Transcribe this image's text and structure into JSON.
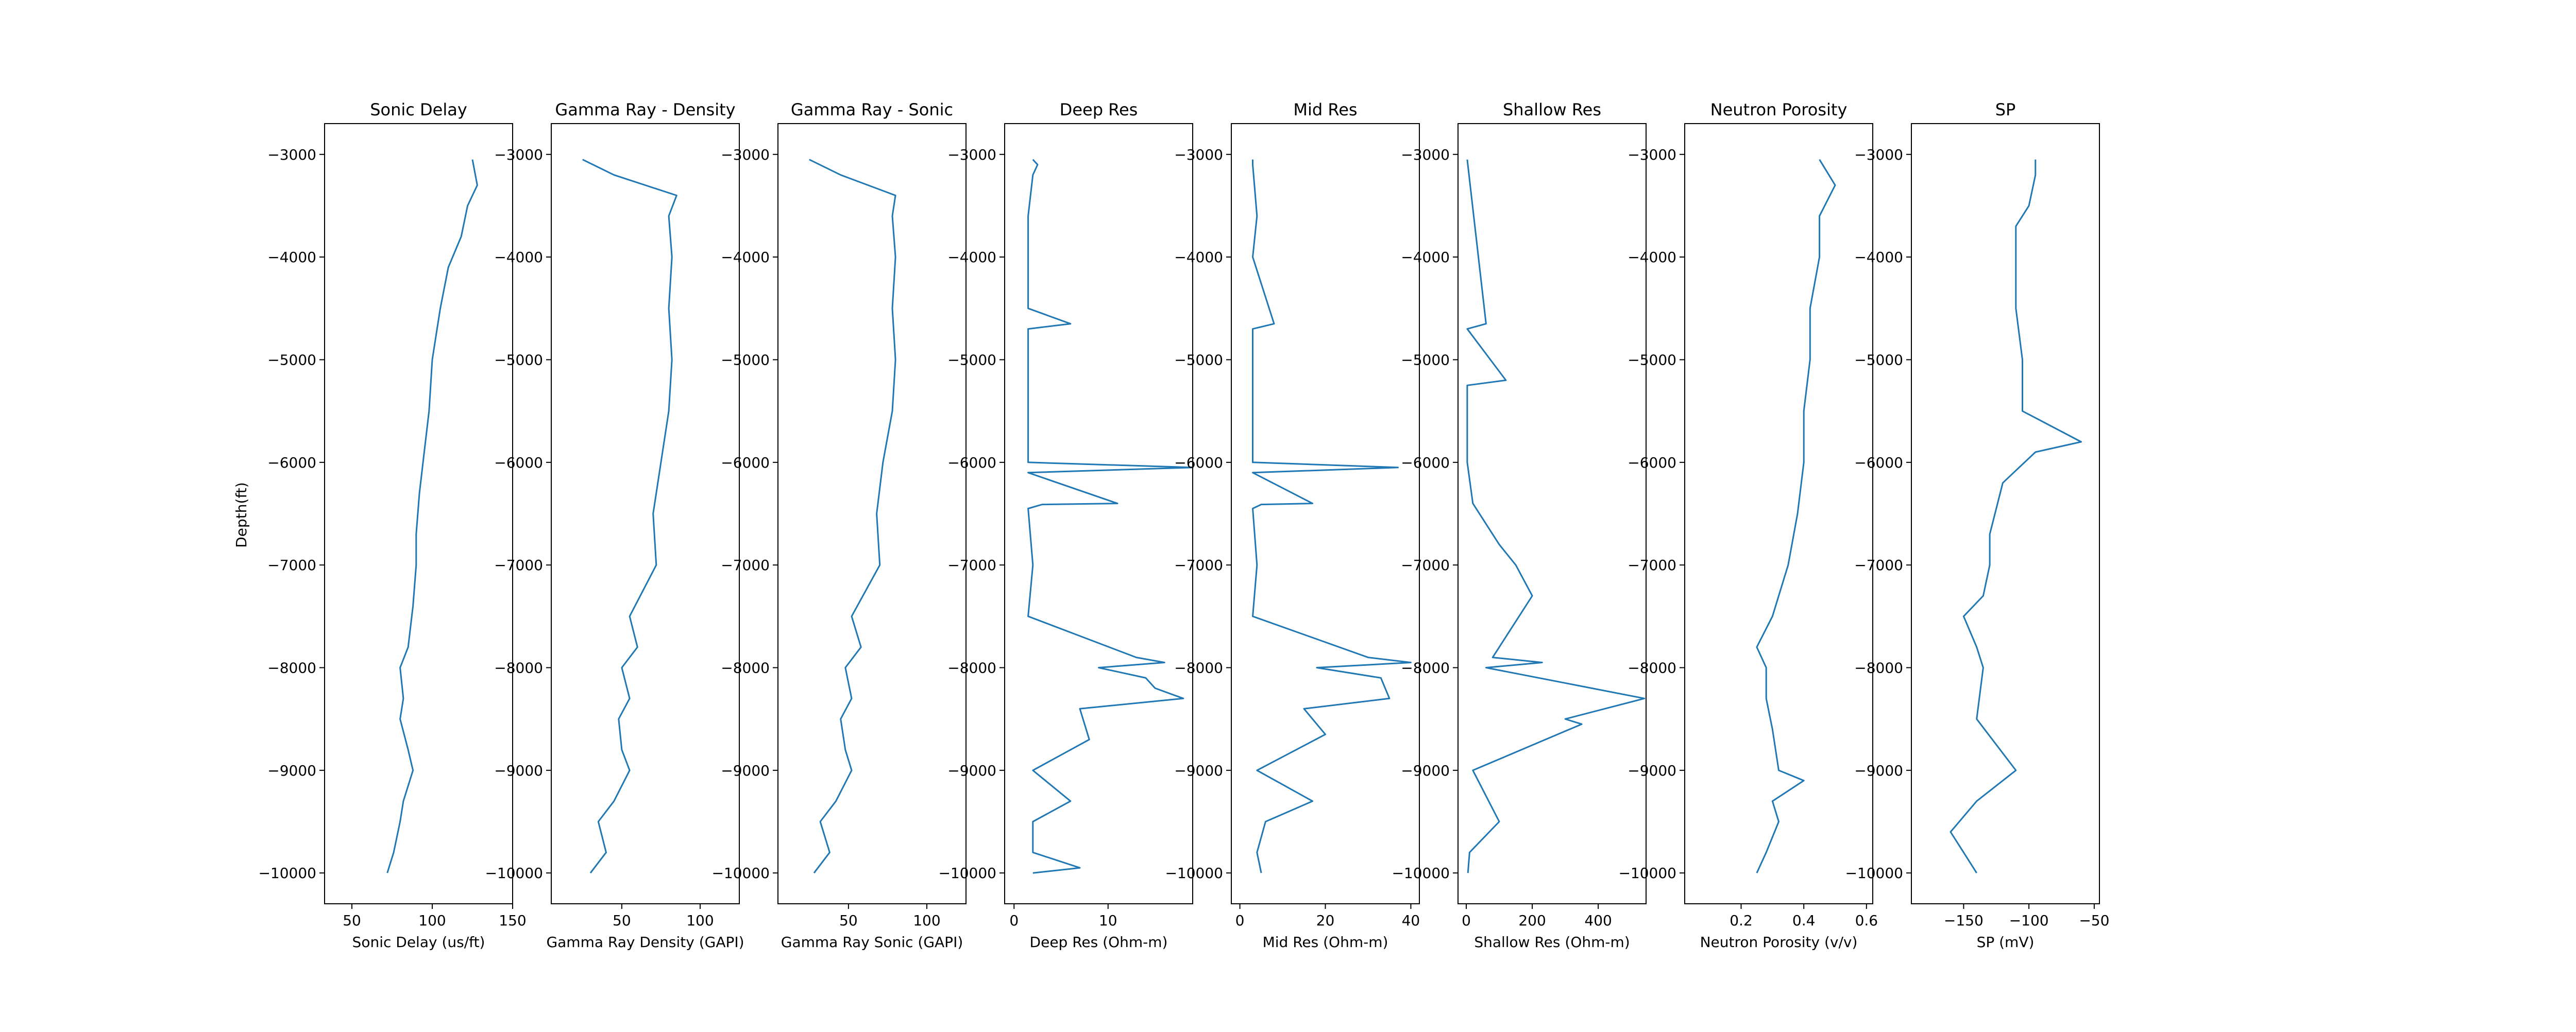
{
  "figure": {
    "ylabel": "Depth(ft)"
  },
  "chart_data": [
    {
      "type": "line",
      "title": "Sonic Delay",
      "xlabel": "Sonic Delay (us/ft)",
      "xlim": [
        33,
        150
      ],
      "xticks": [
        50,
        100,
        150
      ],
      "ylim": [
        -10300,
        -2700
      ],
      "yticks": [
        -3000,
        -4000,
        -5000,
        -6000,
        -7000,
        -8000,
        -9000,
        -10000
      ],
      "color": "#1f77b4",
      "series": [
        {
          "y": [
            -3050,
            -3300,
            -3500,
            -3800,
            -4100,
            -4500,
            -5000,
            -5500,
            -5900,
            -6300,
            -6700,
            -7000,
            -7400,
            -7800,
            -8000,
            -8300,
            -8500,
            -8800,
            -9000,
            -9300,
            -9500,
            -9800,
            -10000
          ],
          "x": [
            125,
            128,
            122,
            118,
            110,
            105,
            100,
            98,
            95,
            92,
            90,
            90,
            88,
            85,
            80,
            82,
            80,
            85,
            88,
            82,
            80,
            76,
            72
          ]
        }
      ]
    },
    {
      "type": "line",
      "title": "Gamma Ray - Density",
      "xlabel": "Gamma Ray Density (GAPI)",
      "xlim": [
        5,
        125
      ],
      "xticks": [
        50,
        100
      ],
      "ylim": [
        -10300,
        -2700
      ],
      "yticks": [
        -3000,
        -4000,
        -5000,
        -6000,
        -7000,
        -8000,
        -9000,
        -10000
      ],
      "color": "#1f77b4",
      "series": [
        {
          "y": [
            -3050,
            -3200,
            -3400,
            -3600,
            -4000,
            -4500,
            -5000,
            -5500,
            -6000,
            -6500,
            -7000,
            -7500,
            -7800,
            -8000,
            -8300,
            -8500,
            -8800,
            -9000,
            -9300,
            -9500,
            -9800,
            -10000
          ],
          "x": [
            25,
            45,
            85,
            80,
            82,
            80,
            82,
            80,
            75,
            70,
            72,
            55,
            60,
            50,
            55,
            48,
            50,
            55,
            45,
            35,
            40,
            30
          ]
        }
      ]
    },
    {
      "type": "line",
      "title": "Gamma Ray - Sonic",
      "xlabel": "Gamma Ray Sonic (GAPI)",
      "xlim": [
        5,
        125
      ],
      "xticks": [
        50,
        100
      ],
      "ylim": [
        -10300,
        -2700
      ],
      "yticks": [
        -3000,
        -4000,
        -5000,
        -6000,
        -7000,
        -8000,
        -9000,
        -10000
      ],
      "color": "#1f77b4",
      "series": [
        {
          "y": [
            -3050,
            -3200,
            -3400,
            -3600,
            -4000,
            -4500,
            -5000,
            -5500,
            -6000,
            -6500,
            -7000,
            -7500,
            -7800,
            -8000,
            -8300,
            -8500,
            -8800,
            -9000,
            -9300,
            -9500,
            -9800,
            -10000
          ],
          "x": [
            25,
            45,
            80,
            78,
            80,
            78,
            80,
            78,
            72,
            68,
            70,
            52,
            58,
            48,
            52,
            45,
            48,
            52,
            42,
            32,
            38,
            28
          ]
        }
      ]
    },
    {
      "type": "line",
      "title": "Deep Res",
      "xlabel": "Deep Res (Ohm-m)",
      "xlim": [
        -1,
        19
      ],
      "xticks": [
        0,
        10
      ],
      "ylim": [
        -10300,
        -2700
      ],
      "yticks": [
        -3000,
        -4000,
        -5000,
        -6000,
        -7000,
        -8000,
        -9000,
        -10000
      ],
      "color": "#1f77b4",
      "series": [
        {
          "y": [
            -3050,
            -3100,
            -3200,
            -3600,
            -4000,
            -4500,
            -4650,
            -4700,
            -5000,
            -5500,
            -6000,
            -6050,
            -6100,
            -6400,
            -6410,
            -6450,
            -7000,
            -7500,
            -7900,
            -7950,
            -8000,
            -8100,
            -8200,
            -8300,
            -8400,
            -8700,
            -9000,
            -9300,
            -9500,
            -9800,
            -9950,
            -10000
          ],
          "x": [
            2,
            2.5,
            2,
            1.5,
            1.5,
            1.5,
            6,
            1.5,
            1.5,
            1.5,
            1.5,
            19,
            1.5,
            11,
            3,
            1.5,
            2,
            1.5,
            13,
            16,
            9,
            14,
            15,
            18,
            7,
            8,
            2,
            6,
            2,
            2,
            7,
            2
          ]
        }
      ]
    },
    {
      "type": "line",
      "title": "Mid Res",
      "xlabel": "Mid Res (Ohm-m)",
      "xlim": [
        -2,
        42
      ],
      "xticks": [
        0,
        20,
        40
      ],
      "ylim": [
        -10300,
        -2700
      ],
      "yticks": [
        -3000,
        -4000,
        -5000,
        -6000,
        -7000,
        -8000,
        -9000,
        -10000
      ],
      "color": "#1f77b4",
      "series": [
        {
          "y": [
            -3050,
            -3100,
            -3600,
            -4000,
            -4650,
            -4700,
            -5000,
            -5500,
            -6000,
            -6050,
            -6100,
            -6400,
            -6410,
            -6450,
            -7000,
            -7500,
            -7900,
            -7950,
            -8000,
            -8100,
            -8200,
            -8300,
            -8400,
            -8650,
            -9000,
            -9300,
            -9500,
            -9800,
            -10000
          ],
          "x": [
            3,
            3,
            4,
            3,
            8,
            3,
            3,
            3,
            3,
            37,
            3,
            17,
            5,
            3,
            4,
            3,
            30,
            40,
            18,
            33,
            34,
            35,
            15,
            20,
            4,
            17,
            6,
            4,
            5
          ]
        }
      ]
    },
    {
      "type": "line",
      "title": "Shallow Res",
      "xlabel": "Shallow Res (Ohm-m)",
      "xlim": [
        -25,
        545
      ],
      "xticks": [
        0,
        200,
        400
      ],
      "ylim": [
        -10300,
        -2700
      ],
      "yticks": [
        -3000,
        -4000,
        -5000,
        -6000,
        -7000,
        -8000,
        -9000,
        -10000
      ],
      "color": "#1f77b4",
      "series": [
        {
          "y": [
            -3050,
            -4650,
            -4700,
            -5200,
            -5250,
            -6000,
            -6400,
            -6800,
            -7000,
            -7300,
            -7900,
            -7950,
            -8000,
            -8300,
            -8500,
            -8550,
            -9000,
            -9500,
            -9800,
            -10000
          ],
          "x": [
            3,
            60,
            3,
            120,
            3,
            3,
            20,
            100,
            150,
            200,
            80,
            230,
            60,
            540,
            300,
            350,
            20,
            100,
            10,
            5
          ]
        }
      ]
    },
    {
      "type": "line",
      "title": "Neutron Porosity",
      "xlabel": "Neutron Porosity (v/v)",
      "xlim": [
        0.02,
        0.62
      ],
      "xticks": [
        0.2,
        0.4,
        0.6
      ],
      "ylim": [
        -10300,
        -2700
      ],
      "yticks": [
        -3000,
        -4000,
        -5000,
        -6000,
        -7000,
        -8000,
        -9000,
        -10000
      ],
      "color": "#1f77b4",
      "series": [
        {
          "y": [
            -3050,
            -3300,
            -3600,
            -4000,
            -4500,
            -5000,
            -5500,
            -6000,
            -6500,
            -7000,
            -7500,
            -7800,
            -8000,
            -8300,
            -8600,
            -9000,
            -9100,
            -9300,
            -9500,
            -9800,
            -10000
          ],
          "x": [
            0.45,
            0.5,
            0.45,
            0.45,
            0.42,
            0.42,
            0.4,
            0.4,
            0.38,
            0.35,
            0.3,
            0.25,
            0.28,
            0.28,
            0.3,
            0.32,
            0.4,
            0.3,
            0.32,
            0.28,
            0.25
          ]
        }
      ]
    },
    {
      "type": "line",
      "title": "SP",
      "xlabel": "SP (mV)",
      "xlim": [
        -190,
        -46
      ],
      "xticks": [
        -150,
        -100,
        -50
      ],
      "ylim": [
        -10300,
        -2700
      ],
      "yticks": [
        -3000,
        -4000,
        -5000,
        -6000,
        -7000,
        -8000,
        -9000,
        -10000
      ],
      "color": "#1f77b4",
      "series": [
        {
          "y": [
            -3050,
            -3200,
            -3500,
            -3700,
            -4000,
            -4500,
            -5000,
            -5500,
            -5800,
            -5900,
            -6200,
            -6700,
            -7000,
            -7300,
            -7500,
            -7800,
            -8000,
            -8500,
            -9000,
            -9300,
            -9600,
            -9800,
            -10000
          ],
          "x": [
            -95,
            -95,
            -100,
            -110,
            -110,
            -110,
            -105,
            -105,
            -60,
            -95,
            -120,
            -130,
            -130,
            -135,
            -150,
            -140,
            -135,
            -140,
            -110,
            -140,
            -160,
            -150,
            -140
          ]
        }
      ]
    }
  ]
}
